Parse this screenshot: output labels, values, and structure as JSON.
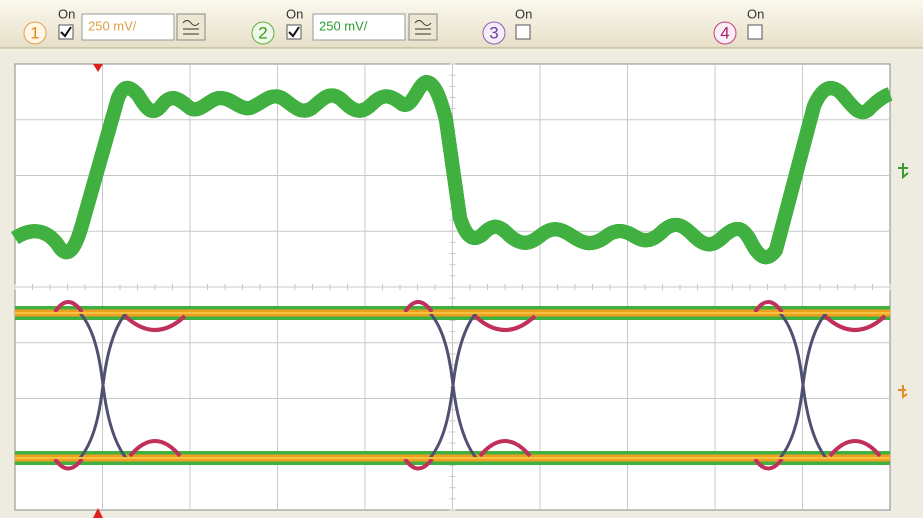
{
  "toolbar": {
    "channels": [
      {
        "number": "1",
        "on_label": "On",
        "scale": "250 mV/"
      },
      {
        "number": "2",
        "on_label": "On",
        "scale": "250 mV/"
      },
      {
        "number": "3",
        "on_label": "On"
      },
      {
        "number": "4",
        "on_label": "On"
      }
    ]
  }
}
